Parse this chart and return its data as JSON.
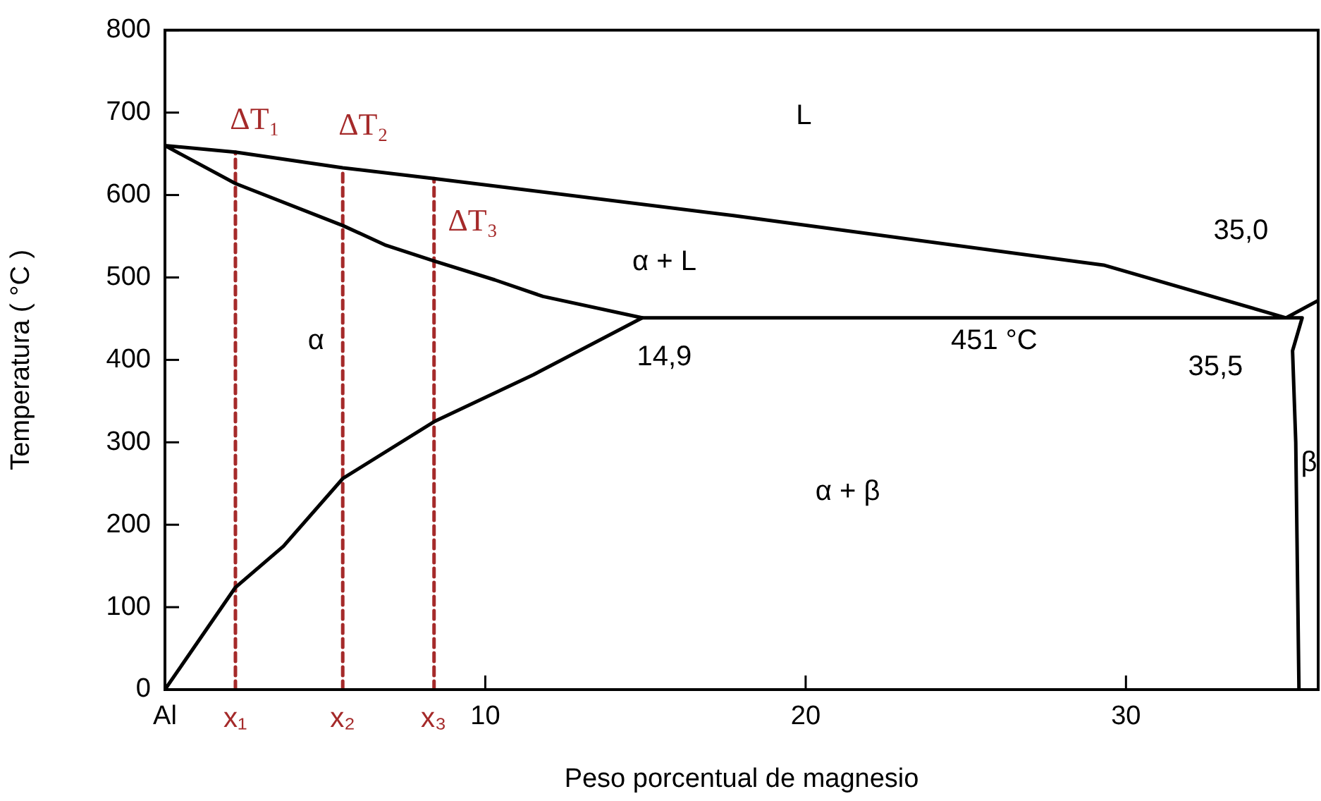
{
  "chart_data": {
    "type": "line",
    "xlabel": "Peso porcentual de magnesio",
    "ylabel": "Temperatura ( °C )",
    "xlim": [
      0,
      36
    ],
    "ylim": [
      0,
      800
    ],
    "xticks": [
      {
        "value": 0,
        "label": "Al"
      },
      10,
      20,
      30
    ],
    "yticks": [
      0,
      100,
      200,
      300,
      400,
      500,
      600,
      700,
      800
    ],
    "grid": false,
    "legend": false,
    "marker": "none",
    "line_style": "solid",
    "series": [
      {
        "color": "#000000",
        "x": [
          36,
          35,
          29.3,
          17.75,
          8.4,
          5.55,
          2.2,
          0,
          2.2,
          5.55,
          6.9,
          8.4,
          10.3,
          11.8,
          14.9,
          35.5,
          35.2,
          35.3,
          35.4
        ],
        "values": [
          472,
          451,
          515,
          575,
          620,
          633,
          652,
          660,
          614,
          563,
          539,
          520,
          497,
          477,
          451,
          451,
          411,
          300,
          0
        ]
      },
      {
        "color": "#000000",
        "x": [
          0,
          2.2,
          3.7,
          5.55,
          8.4,
          11.5,
          14.9
        ],
        "values": [
          0,
          124,
          174,
          256,
          325,
          382,
          451
        ]
      },
      {
        "color": "#a52a2a",
        "line_style": "dashed",
        "x": [
          2.2,
          2.2
        ],
        "values": [
          0,
          652
        ]
      },
      {
        "color": "#a52a2a",
        "line_style": "dashed",
        "x": [
          5.55,
          5.55
        ],
        "values": [
          0,
          633
        ]
      },
      {
        "color": "#a52a2a",
        "line_style": "dashed",
        "x": [
          8.4,
          8.4
        ],
        "values": [
          0,
          620
        ]
      }
    ],
    "annotations": [
      "L",
      "ΔT₁",
      "ΔT₂",
      "ΔT₃",
      "α + L",
      "α",
      "14,9",
      "451 °C",
      "35,0",
      "35,5",
      "β",
      "α + β",
      "x₁",
      "x₂",
      "x₃"
    ]
  }
}
